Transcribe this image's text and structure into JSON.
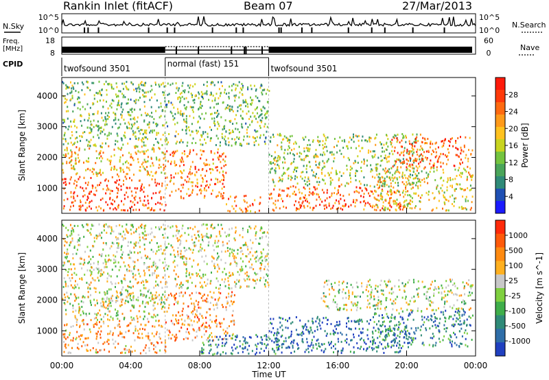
{
  "header": {
    "title": "Rankin Inlet (fitACF)",
    "beam": "Beam 07",
    "date": "27/Mar/2013"
  },
  "noise_panel": {
    "left_label": "N.Sky",
    "right_label": "N.Search",
    "left_ticks": [
      "10^5",
      "10^0"
    ],
    "right_ticks": [
      "10^5",
      "10^0"
    ]
  },
  "freq_panel": {
    "left_label_line1": "Freq.",
    "left_label_line2": "[MHz]",
    "right_label": "Nave",
    "left_ticks": [
      "18",
      "8"
    ],
    "right_ticks": [
      "60",
      "0"
    ]
  },
  "cpid": {
    "label": "CPID",
    "segments": [
      {
        "name": "twofsound 3501",
        "start_hour": 0,
        "end_hour": 6
      },
      {
        "name": "normal (fast) 151",
        "start_hour": 6,
        "end_hour": 12
      },
      {
        "name": "twofsound 3501",
        "start_hour": 12,
        "end_hour": 24
      }
    ]
  },
  "x_axis": {
    "label": "Time UT",
    "ticks": [
      "00:00",
      "04:00",
      "08:00",
      "12:00",
      "16:00",
      "20:00",
      "00:00"
    ],
    "tick_hours": [
      0,
      4,
      8,
      12,
      16,
      20,
      24
    ]
  },
  "chart_data": [
    {
      "type": "heatmap",
      "name": "power",
      "ylabel": "Slant Range [km]",
      "yticks": [
        1000,
        2000,
        3000,
        4000
      ],
      "ylim": [
        180,
        4600
      ],
      "xlim_hours": [
        0,
        24
      ],
      "colorbar_label": "Power [dB]",
      "colorbar_ticks": [
        "4",
        "8",
        "12",
        "16",
        "20",
        "24",
        "28"
      ],
      "colorbar_colors": [
        "#1b1bff",
        "#1f50b4",
        "#2f8a78",
        "#4aa55a",
        "#74c43f",
        "#c8d41f",
        "#ffc21f",
        "#ff9a1a",
        "#ff6a10",
        "#ff3a0a",
        "#ff1a0a"
      ],
      "scatter_regions": [
        {
          "t0": 0.0,
          "t1": 6.0,
          "r0": 300,
          "r1": 1400,
          "level": 0.85
        },
        {
          "t0": 0.0,
          "t1": 6.0,
          "r0": 1400,
          "r1": 2400,
          "level": 0.6
        },
        {
          "t0": 6.0,
          "t1": 9.5,
          "r0": 700,
          "r1": 2300,
          "level": 0.75
        },
        {
          "t0": 9.5,
          "t1": 11.5,
          "r0": 200,
          "r1": 800,
          "level": 0.7
        },
        {
          "t0": 12.0,
          "t1": 20.0,
          "r0": 300,
          "r1": 1100,
          "level": 0.8
        },
        {
          "t0": 12.0,
          "t1": 21.0,
          "r0": 1100,
          "r1": 2800,
          "level": 0.45
        },
        {
          "t0": 19.0,
          "t1": 23.8,
          "r0": 1700,
          "r1": 2700,
          "level": 0.8
        },
        {
          "t0": 18.0,
          "t1": 23.8,
          "r0": 300,
          "r1": 1700,
          "level": 0.55
        },
        {
          "t0": 0.0,
          "t1": 12.0,
          "r0": 2400,
          "r1": 4500,
          "level": 0.4
        }
      ]
    },
    {
      "type": "heatmap",
      "name": "velocity",
      "ylabel": "Slant Range [km]",
      "yticks": [
        1000,
        2000,
        3000,
        4000
      ],
      "ylim": [
        180,
        4600
      ],
      "xlim_hours": [
        0,
        24
      ],
      "colorbar_label": "Velocity [m s^-1]",
      "colorbar_ticks": [
        "1000",
        "500",
        "100",
        "25",
        "-25",
        "-100",
        "-500",
        "-1000"
      ],
      "colorbar_colors": [
        "#2040c0",
        "#2f6ea8",
        "#2f8a78",
        "#3fae4a",
        "#7fd03f",
        "#c8c8c8",
        "#ffb020",
        "#ff8a10",
        "#ff5a0a",
        "#ff2a0a"
      ],
      "scatter_regions": [
        {
          "t0": 0.0,
          "t1": 6.0,
          "r0": 300,
          "r1": 1400,
          "level": 0.7
        },
        {
          "t0": 0.0,
          "t1": 6.0,
          "r0": 1400,
          "r1": 2300,
          "level": 0.55
        },
        {
          "t0": 2.0,
          "t1": 6.0,
          "r0": 1900,
          "r1": 2400,
          "level": 0.5
        },
        {
          "t0": 6.0,
          "t1": 10.0,
          "r0": 700,
          "r1": 2300,
          "level": 0.72
        },
        {
          "t0": 8.0,
          "t1": 12.5,
          "r0": 200,
          "r1": 900,
          "level": 0.2
        },
        {
          "t0": 12.0,
          "t1": 20.0,
          "r0": 300,
          "r1": 1500,
          "level": 0.15
        },
        {
          "t0": 15.0,
          "t1": 23.8,
          "r0": 1700,
          "r1": 2700,
          "level": 0.5
        },
        {
          "t0": 18.0,
          "t1": 23.8,
          "r0": 500,
          "r1": 1700,
          "level": 0.25
        },
        {
          "t0": 0.0,
          "t1": 12.0,
          "r0": 2400,
          "r1": 4500,
          "level": 0.55
        }
      ]
    }
  ]
}
